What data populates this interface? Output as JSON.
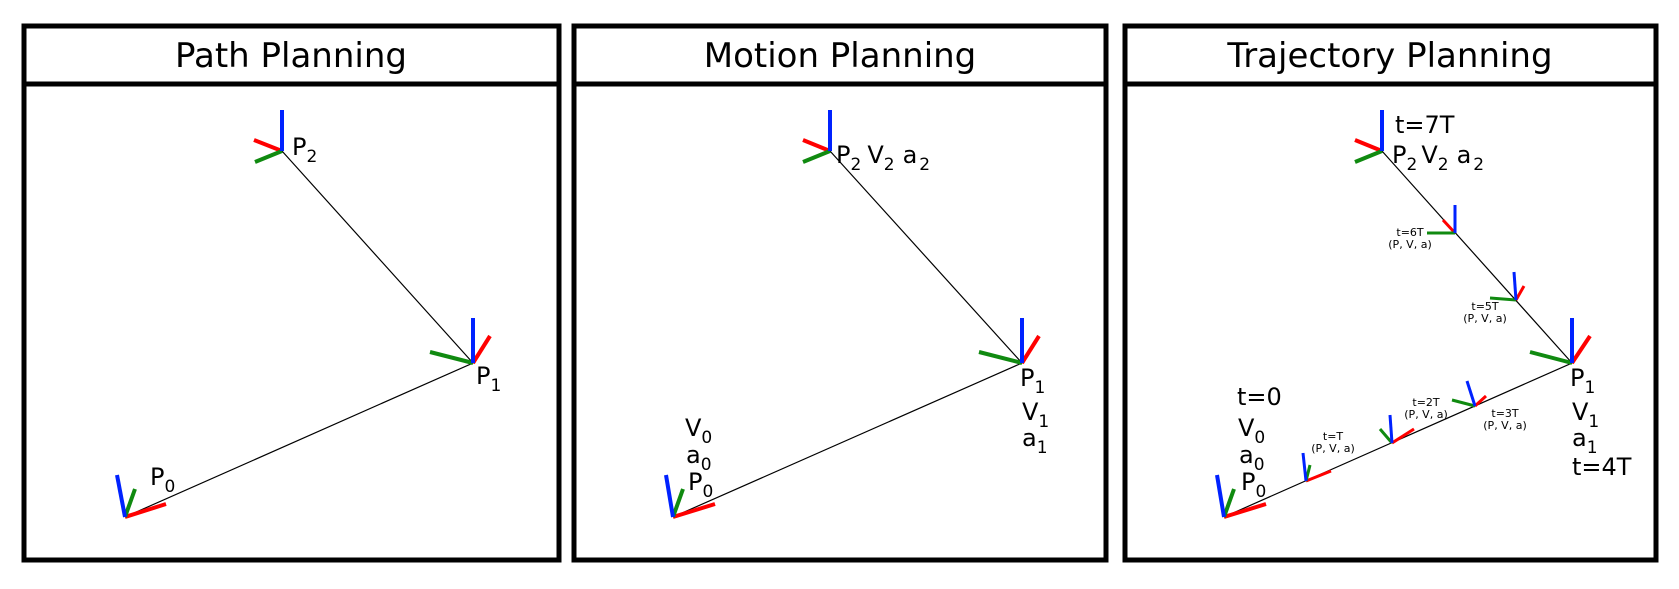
{
  "panels": [
    {
      "title": "Path Planning",
      "labels": {
        "p0": {
          "main": "P",
          "sub": "0"
        },
        "p1": {
          "main": "P",
          "sub": "1"
        },
        "p2": {
          "main": "P",
          "sub": "2"
        }
      }
    },
    {
      "title": "Motion Planning",
      "labels": {
        "v0": {
          "main": "V",
          "sub": "0"
        },
        "a0": {
          "main": "a",
          "sub": "0"
        },
        "p0": {
          "main": "P",
          "sub": "0"
        },
        "p1": {
          "main": "P",
          "sub": "1"
        },
        "v1": {
          "main": "V",
          "sub": "1"
        },
        "a1": {
          "main": "a",
          "sub": "1"
        },
        "p2": {
          "main": "P",
          "sub": "2"
        },
        "v2": {
          "main": "V",
          "sub": "2"
        },
        "a2": {
          "main": "a",
          "sub": "2"
        }
      }
    },
    {
      "title": "Trajectory Planning",
      "labels": {
        "t0": "t=0",
        "v0": {
          "main": "V",
          "sub": "0"
        },
        "a0": {
          "main": "a",
          "sub": "0"
        },
        "p0": {
          "main": "P",
          "sub": "0"
        },
        "p1": {
          "main": "P",
          "sub": "1"
        },
        "v1": {
          "main": "V",
          "sub": "1"
        },
        "a1": {
          "main": "a",
          "sub": "1"
        },
        "t4": "t=4T",
        "t7": "t=7T",
        "p2": {
          "main": "P",
          "sub": "2"
        },
        "v2": {
          "main": "V",
          "sub": "2"
        },
        "a2": {
          "main": "a",
          "sub": "2"
        }
      },
      "intermediate": [
        {
          "time": "t=T",
          "state": "(P, V, a)"
        },
        {
          "time": "t=2T",
          "state": "(P, V, a)"
        },
        {
          "time": "t=3T",
          "state": "(P, V, a)"
        },
        {
          "time": "t=5T",
          "state": "(P, V, a)"
        },
        {
          "time": "t=6T",
          "state": "(P, V, a)"
        }
      ]
    }
  ],
  "colors": {
    "frame": "#000000",
    "x_axis": "#ff0000",
    "y_axis": "#108a10",
    "z_axis": "#0022ff",
    "path_line": "#000000"
  }
}
